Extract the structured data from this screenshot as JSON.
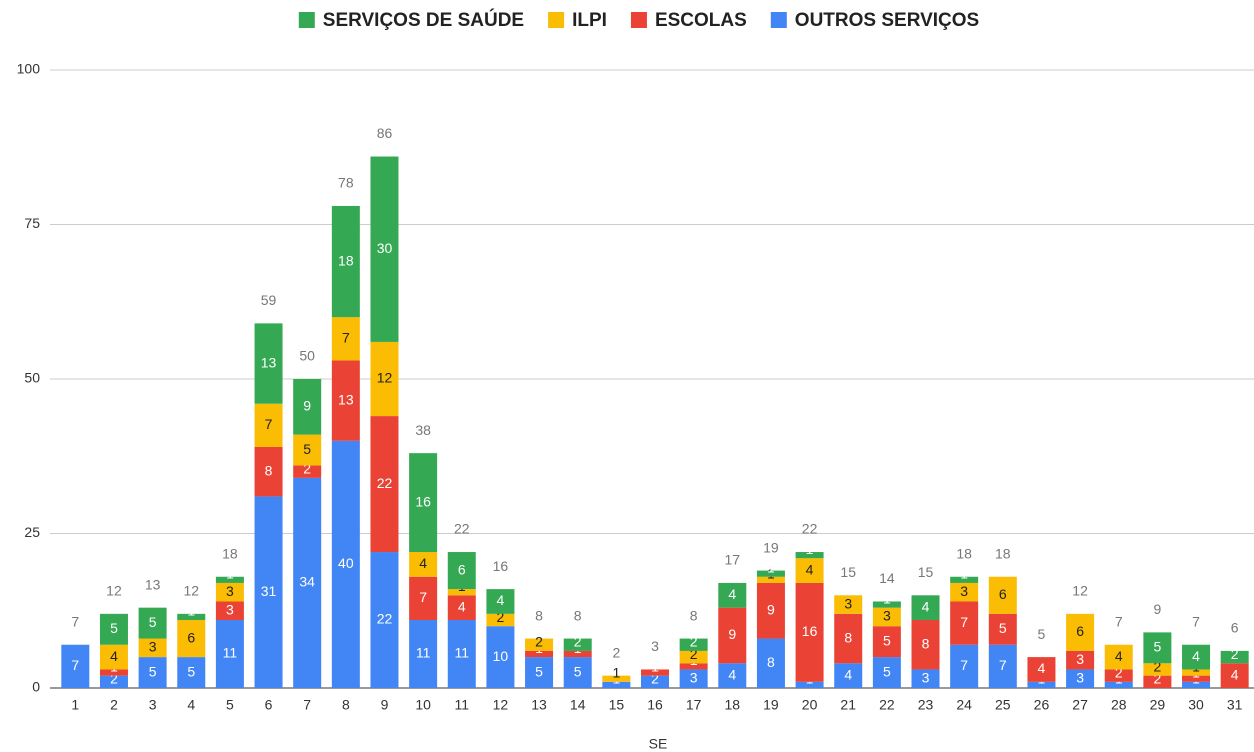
{
  "chart_data": {
    "type": "stacked-bar",
    "x_label": "SE",
    "categories": [
      "1",
      "2",
      "3",
      "4",
      "5",
      "6",
      "7",
      "8",
      "9",
      "10",
      "11",
      "12",
      "13",
      "14",
      "15",
      "16",
      "17",
      "18",
      "19",
      "20",
      "21",
      "22",
      "23",
      "24",
      "25",
      "26",
      "27",
      "28",
      "29",
      "30",
      "31"
    ],
    "series": [
      {
        "name": "OUTROS SERVIÇOS",
        "color": "#4285f4",
        "values": [
          7,
          2,
          5,
          5,
          11,
          31,
          34,
          40,
          22,
          11,
          11,
          10,
          5,
          5,
          1,
          2,
          3,
          4,
          8,
          1,
          4,
          5,
          3,
          7,
          7,
          1,
          3,
          1,
          0,
          1,
          0
        ]
      },
      {
        "name": "ESCOLAS",
        "color": "#ea4335",
        "values": [
          0,
          1,
          0,
          0,
          3,
          8,
          2,
          13,
          22,
          7,
          4,
          0,
          1,
          1,
          0,
          1,
          1,
          9,
          9,
          16,
          8,
          5,
          8,
          7,
          5,
          4,
          3,
          2,
          2,
          1,
          4
        ]
      },
      {
        "name": "ILPI",
        "color": "#fbbc04",
        "values": [
          0,
          4,
          3,
          6,
          3,
          7,
          5,
          7,
          12,
          4,
          1,
          2,
          2,
          0,
          1,
          0,
          2,
          0,
          1,
          4,
          3,
          3,
          0,
          3,
          6,
          0,
          6,
          4,
          2,
          1,
          0
        ]
      },
      {
        "name": "SERVIÇOS DE SAÚDE",
        "color": "#34a853",
        "values": [
          0,
          5,
          5,
          1,
          1,
          13,
          9,
          18,
          30,
          16,
          6,
          4,
          0,
          2,
          0,
          0,
          2,
          4,
          1,
          1,
          0,
          1,
          4,
          1,
          0,
          0,
          0,
          0,
          5,
          4,
          2
        ]
      }
    ],
    "totals": [
      7,
      12,
      13,
      12,
      18,
      59,
      50,
      78,
      86,
      38,
      22,
      16,
      8,
      8,
      2,
      3,
      8,
      17,
      19,
      22,
      15,
      14,
      15,
      18,
      18,
      5,
      12,
      7,
      9,
      7,
      6
    ],
    "ylim": [
      0,
      100
    ],
    "yticks": [
      0,
      25,
      50,
      75,
      100
    ],
    "grid": true
  }
}
